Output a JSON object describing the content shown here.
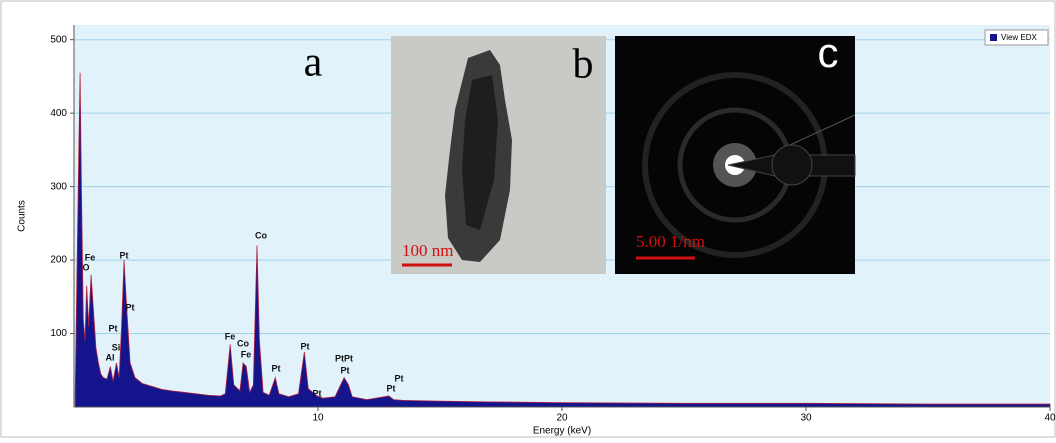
{
  "chart_data": {
    "type": "area",
    "x_label": "Energy (keV)",
    "y_label": "Counts",
    "xlim": [
      0,
      40
    ],
    "ylim": [
      0,
      520
    ],
    "xticks": [
      10,
      20,
      30,
      40
    ],
    "yticks": [
      100,
      200,
      300,
      400,
      500
    ],
    "grid": true,
    "legend": "top-right",
    "x": [
      0.05,
      0.12,
      0.2,
      0.25,
      0.3,
      0.38,
      0.45,
      0.52,
      0.6,
      0.7,
      0.8,
      0.9,
      1.0,
      1.1,
      1.2,
      1.35,
      1.49,
      1.6,
      1.74,
      1.85,
      1.95,
      2.05,
      2.15,
      2.3,
      2.5,
      2.8,
      3.2,
      3.6,
      4.0,
      4.5,
      5.0,
      5.5,
      6.0,
      6.2,
      6.4,
      6.55,
      6.8,
      6.93,
      7.06,
      7.2,
      7.35,
      7.5,
      7.6,
      7.75,
      8.0,
      8.25,
      8.4,
      8.8,
      9.2,
      9.44,
      9.6,
      9.97,
      10.2,
      10.7,
      11.07,
      11.25,
      11.4,
      12,
      12.9,
      13.1,
      13.5,
      15,
      17,
      20,
      25,
      30,
      35,
      40
    ],
    "series": [
      {
        "name": "View EDX",
        "color": "#14148c",
        "values": [
          20,
          180,
          355,
          455,
          310,
          120,
          90,
          165,
          110,
          180,
          130,
          80,
          60,
          45,
          40,
          38,
          55,
          35,
          60,
          40,
          110,
          200,
          140,
          60,
          40,
          32,
          28,
          24,
          22,
          20,
          18,
          16,
          15,
          18,
          85,
          30,
          22,
          60,
          55,
          20,
          30,
          220,
          90,
          20,
          16,
          40,
          18,
          14,
          18,
          75,
          25,
          15,
          12,
          14,
          40,
          30,
          14,
          10,
          15,
          10,
          9,
          8,
          7,
          6,
          5,
          5,
          4,
          4
        ]
      }
    ],
    "peak_labels": [
      "Fe",
      "O",
      "Pt",
      "Pt",
      "Pt",
      "Al",
      "Si",
      "Co",
      "Fe",
      "Co",
      "Fe",
      "Pt",
      "Pt",
      "Pt",
      "PtPt",
      "Pt",
      "Pt",
      "Pt"
    ],
    "panel_labels": [
      "a",
      "b",
      "c"
    ],
    "scale_bars": [
      "100 nm",
      "5.00 1/nm"
    ]
  }
}
